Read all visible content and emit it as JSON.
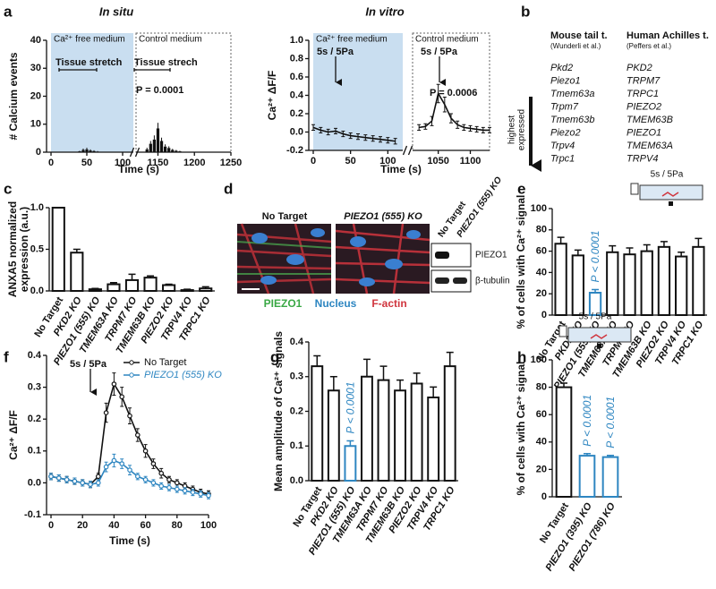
{
  "chart_data": [
    {
      "type": "bar",
      "panel": "a",
      "title": "In situ",
      "ylabel": "# Calcium events",
      "xlabel": "Time (s)",
      "ylim": [
        0,
        40
      ],
      "yticks": [
        0,
        10,
        20,
        30,
        40
      ],
      "segments": [
        {
          "xlim": [
            0,
            115
          ],
          "xticks": [
            0,
            50,
            100
          ],
          "region": "Ca²⁺ free medium",
          "region_color": "#c9def0",
          "region_style": "solid"
        },
        {
          "xlim": [
            1120,
            1250
          ],
          "xticks": [
            1150,
            1200,
            1250
          ],
          "region": "Control medium",
          "region_color": null,
          "region_style": "dotted"
        }
      ],
      "x": [
        40,
        45,
        50,
        55,
        60,
        65,
        1135,
        1140,
        1145,
        1150,
        1155,
        1160,
        1165,
        1170,
        1175,
        1180
      ],
      "values": [
        0.3,
        0.8,
        1,
        0.6,
        0.4,
        0.2,
        1,
        3,
        4.5,
        8.5,
        4,
        2,
        1.5,
        0.8,
        0.5,
        0.3
      ],
      "errors": [
        0.2,
        0.5,
        0.6,
        0.4,
        0.3,
        0.2,
        0.6,
        1,
        1.5,
        2,
        1.2,
        0.8,
        0.6,
        0.4,
        0.3,
        0.2
      ],
      "color": "#111111",
      "annotations": [
        "Tissue stretch",
        "Tissue strech",
        "P = 0.0001"
      ]
    },
    {
      "type": "line",
      "title": "In vitro",
      "ylabel": "Ca²⁺ ΔF/F",
      "xlabel": "Time (s)",
      "ylim": [
        -0.2,
        1.0
      ],
      "yticks": [
        {
          "value": -0.2,
          "label": "-0.2"
        },
        {
          "value": 0,
          "label": "0.0"
        },
        {
          "value": 0.2,
          "label": "0.2"
        },
        {
          "value": 0.4,
          "label": "0.4"
        },
        {
          "value": 0.6,
          "label": "0.6"
        },
        {
          "value": 0.8,
          "label": "0.8"
        },
        {
          "value": 1,
          "label": "1.0"
        }
      ],
      "segments": [
        {
          "xlim": [
            0,
            120
          ],
          "xticks": [
            0,
            50,
            100
          ],
          "region": "Ca²⁺ free medium",
          "region_color": "#c9def0",
          "region_style": "solid"
        },
        {
          "xlim": [
            1010,
            1130
          ],
          "xticks": [
            1050,
            1100
          ],
          "region": "Control medium",
          "region_color": null,
          "region_style": "dotted"
        }
      ],
      "x": [
        0,
        10,
        20,
        30,
        40,
        50,
        60,
        70,
        80,
        90,
        100,
        110,
        1020,
        1030,
        1040,
        1050,
        1060,
        1070,
        1080,
        1090,
        1100,
        1110,
        1120,
        1130
      ],
      "series": [
        {
          "color": "#111111",
          "values": [
            0.05,
            0.02,
            0.0,
            0.01,
            -0.02,
            -0.04,
            -0.05,
            -0.06,
            -0.07,
            -0.08,
            -0.09,
            -0.1,
            0.05,
            0.06,
            0.12,
            0.42,
            0.3,
            0.15,
            0.08,
            0.05,
            0.04,
            0.03,
            0.02,
            0.02
          ],
          "errors": [
            0.03,
            0.03,
            0.03,
            0.03,
            0.03,
            0.03,
            0.03,
            0.03,
            0.03,
            0.03,
            0.03,
            0.03,
            0.03,
            0.03,
            0.05,
            0.1,
            0.08,
            0.05,
            0.04,
            0.03,
            0.03,
            0.03,
            0.03,
            0.03
          ]
        }
      ],
      "annotations": [
        "5s / 5Pa",
        "5s / 5Pa",
        "P = 0.0006"
      ]
    },
    {
      "type": "bar",
      "panel": "c",
      "ylabel": [
        "ANXA5 normalized",
        "expression (a.u.)"
      ],
      "ylim": [
        0,
        1
      ],
      "yticks": [
        {
          "value": 0,
          "label": "0.0"
        },
        {
          "value": 0.5,
          "label": "0.5"
        },
        {
          "value": 1,
          "label": "1.0"
        }
      ],
      "categories": [
        "No Target",
        "PKD2 KO",
        "PIEZO1 (555) KO",
        "TMEM63A KO",
        "TRPM7 KO",
        "TMEM63B KO",
        "PIEZO2 KO",
        "TRPV4 KO",
        "TRPC1 KO"
      ],
      "values": [
        1.0,
        0.46,
        0.02,
        0.08,
        0.13,
        0.16,
        0.07,
        0.01,
        0.03
      ],
      "errors": [
        0,
        0.04,
        0.01,
        0.02,
        0.07,
        0.02,
        0.01,
        0.01,
        0.02
      ],
      "colors": [
        "#111111",
        "#111111",
        "#111111",
        "#111111",
        "#111111",
        "#111111",
        "#111111",
        "#111111",
        "#111111"
      ]
    },
    {
      "type": "bar",
      "panel": "e",
      "ylabel": "% of cells with Ca²⁺ signal",
      "ylim": [
        0,
        100
      ],
      "yticks": [
        0,
        20,
        40,
        60,
        80,
        100
      ],
      "categories": [
        "No Target",
        "PKD2 KO",
        "PIEZO1 (555) KO",
        "TMEM63A KO",
        "TRPM7 KO",
        "TMEM63B KO",
        "PIEZO2 KO",
        "TRPV4 KO",
        "TRPC1 KO"
      ],
      "values": [
        67,
        56,
        21,
        59,
        57,
        60,
        64,
        55,
        64
      ],
      "errors": [
        6,
        5,
        3,
        6,
        6,
        6,
        5,
        4,
        8
      ],
      "colors": [
        "#111111",
        "#111111",
        "#2e86c1",
        "#111111",
        "#111111",
        "#111111",
        "#111111",
        "#111111",
        "#111111"
      ],
      "annotations": [
        {
          "text": "P < 0.0001",
          "at": "PIEZO1 (555) KO"
        }
      ],
      "inset_label": "5s / 5Pa"
    },
    {
      "type": "line",
      "panel": "f",
      "ylabel": "Ca²⁺ ΔF/F",
      "xlabel": "Time (s)",
      "xlim": [
        0,
        100
      ],
      "xticks": [
        0,
        20,
        40,
        60,
        80,
        100
      ],
      "ylim": [
        -0.1,
        0.4
      ],
      "yticks": [
        {
          "value": -0.1,
          "label": "-0.1"
        },
        {
          "value": 0,
          "label": "0.0"
        },
        {
          "value": 0.1,
          "label": "0.1"
        },
        {
          "value": 0.2,
          "label": "0.2"
        },
        {
          "value": 0.3,
          "label": "0.3"
        },
        {
          "value": 0.4,
          "label": "0.4"
        }
      ],
      "x": [
        0,
        5,
        10,
        15,
        20,
        25,
        30,
        35,
        40,
        45,
        50,
        55,
        60,
        65,
        70,
        75,
        80,
        85,
        90,
        95,
        100
      ],
      "markers": true,
      "legend": "upper right",
      "series": [
        {
          "name": "No Target",
          "color": "#111111",
          "values": [
            0.02,
            0.015,
            0.01,
            0.005,
            0.0,
            -0.005,
            0.02,
            0.22,
            0.31,
            0.27,
            0.21,
            0.15,
            0.1,
            0.06,
            0.03,
            0.01,
            0.0,
            -0.01,
            -0.02,
            -0.03,
            -0.035
          ],
          "errors": [
            0.01,
            0.01,
            0.01,
            0.01,
            0.01,
            0.01,
            0.01,
            0.03,
            0.035,
            0.03,
            0.025,
            0.02,
            0.02,
            0.015,
            0.015,
            0.01,
            0.01,
            0.01,
            0.01,
            0.01,
            0.01
          ]
        },
        {
          "name": "PIEZO1 (555) KO",
          "color": "#2e86c1",
          "values": [
            0.02,
            0.015,
            0.01,
            0.005,
            0.0,
            -0.005,
            0.0,
            0.05,
            0.07,
            0.06,
            0.04,
            0.02,
            0.01,
            0.0,
            -0.01,
            -0.015,
            -0.02,
            -0.025,
            -0.03,
            -0.035,
            -0.04
          ],
          "errors": [
            0.01,
            0.01,
            0.01,
            0.01,
            0.01,
            0.01,
            0.01,
            0.015,
            0.02,
            0.015,
            0.015,
            0.01,
            0.01,
            0.01,
            0.01,
            0.01,
            0.01,
            0.01,
            0.01,
            0.01,
            0.01
          ]
        }
      ],
      "annotations": [
        "5s / 5Pa"
      ]
    },
    {
      "type": "bar",
      "panel": "g",
      "ylabel": "Mean amplitude of Ca²⁺ signals",
      "ylim": [
        0,
        0.4
      ],
      "yticks": [
        {
          "value": 0,
          "label": "0.0"
        },
        {
          "value": 0.1,
          "label": "0.1"
        },
        {
          "value": 0.2,
          "label": "0.2"
        },
        {
          "value": 0.3,
          "label": "0.3"
        },
        {
          "value": 0.4,
          "label": "0.4"
        }
      ],
      "categories": [
        "No Target",
        "PKD2 KO",
        "PIEZO1 (555) KO",
        "TMEM63A KO",
        "TRPM7 KO",
        "TMEM63B KO",
        "PIEZO2 KO",
        "TRPV4 KO",
        "TRPC1 KO"
      ],
      "values": [
        0.33,
        0.26,
        0.1,
        0.3,
        0.29,
        0.26,
        0.28,
        0.24,
        0.33
      ],
      "errors": [
        0.03,
        0.04,
        0.015,
        0.05,
        0.04,
        0.03,
        0.03,
        0.03,
        0.04
      ],
      "colors": [
        "#111111",
        "#111111",
        "#2e86c1",
        "#111111",
        "#111111",
        "#111111",
        "#111111",
        "#111111",
        "#111111"
      ],
      "annotations": [
        {
          "text": "P < 0.0001",
          "at": "PIEZO1 (555) KO"
        }
      ]
    },
    {
      "type": "bar",
      "panel": "h",
      "ylabel": "% of cells with Ca²⁺ signal",
      "ylim": [
        0,
        100
      ],
      "yticks": [
        0,
        20,
        40,
        60,
        80,
        100
      ],
      "categories": [
        "No Target",
        "PIEZO1 (395) KO",
        "PIEZO1 (786) KO"
      ],
      "values": [
        80,
        30,
        29
      ],
      "errors": [
        3,
        1.5,
        1.2
      ],
      "colors": [
        "#111111",
        "#2e86c1",
        "#2e86c1"
      ],
      "annotations": [
        {
          "text": "P < 0.0001",
          "at": "PIEZO1 (395) KO"
        },
        {
          "text": "P < 0.0001",
          "at": "PIEZO1 (786) KO"
        }
      ],
      "inset_label": "5s / 5Pa"
    }
  ],
  "table": {
    "panel": "b",
    "arrow_label": [
      "highest",
      "expressed"
    ],
    "columns": [
      {
        "title": "Mouse tail t.",
        "source": "(Wunderli et al.)",
        "genes": [
          "Pkd2",
          "Piezo1",
          "Tmem63a",
          "Trpm7",
          "Tmem63b",
          "Piezo2",
          "Trpv4",
          "Trpc1"
        ]
      },
      {
        "title": "Human Achilles t.",
        "source": "(Peffers et al.)",
        "genes": [
          "PKD2",
          "TRPM7",
          "TRPC1",
          "PIEZO2",
          "TMEM63B",
          "PIEZO1",
          "TMEM63A",
          "TRPV4"
        ]
      }
    ]
  },
  "image": {
    "panel": "d",
    "micrographs": [
      "No Target",
      "PIEZO1 (555) KO"
    ],
    "stains": [
      "PIEZO1",
      "Nucleus",
      "F-actin"
    ],
    "blot": {
      "lanes": [
        "No Target",
        "PIEZO1 (555) KO"
      ],
      "bands": [
        "PIEZO1",
        "β-tubulin"
      ]
    }
  }
}
